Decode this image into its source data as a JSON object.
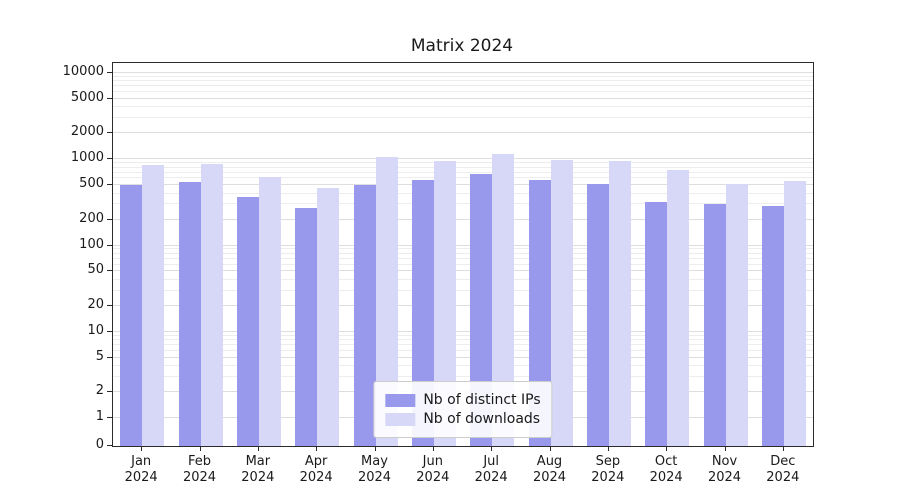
{
  "title": "Matrix 2024",
  "legend": {
    "items": [
      {
        "label": "Nb of distinct IPs",
        "color": "#9898ed"
      },
      {
        "label": "Nb of downloads",
        "color": "#d7d7f8"
      }
    ]
  },
  "axes": {
    "months": [
      "Jan",
      "Feb",
      "Mar",
      "Apr",
      "May",
      "Jun",
      "Jul",
      "Aug",
      "Sep",
      "Oct",
      "Nov",
      "Dec"
    ],
    "year": "2024",
    "y_tick_labels": [
      "0",
      "1",
      "2",
      "5",
      "10",
      "20",
      "50",
      "100",
      "200",
      "500",
      "1000",
      "2000",
      "5000",
      "10000"
    ]
  },
  "chart_data": {
    "type": "bar",
    "scale": "symlog",
    "title": "Matrix 2024",
    "xlabel": "",
    "ylabel": "",
    "categories": [
      "Jan 2024",
      "Feb 2024",
      "Mar 2024",
      "Apr 2024",
      "May 2024",
      "Jun 2024",
      "Jul 2024",
      "Aug 2024",
      "Sep 2024",
      "Oct 2024",
      "Nov 2024",
      "Dec 2024"
    ],
    "series": [
      {
        "name": "Nb of distinct IPs",
        "color": "#9898ed",
        "values": [
          500,
          540,
          370,
          270,
          500,
          570,
          680,
          570,
          520,
          320,
          300,
          290
        ]
      },
      {
        "name": "Nb of downloads",
        "color": "#d7d7f8",
        "values": [
          850,
          890,
          630,
          460,
          1050,
          950,
          1150,
          980,
          960,
          760,
          520,
          560
        ]
      }
    ],
    "y_ticks": [
      0,
      1,
      2,
      5,
      10,
      20,
      50,
      100,
      200,
      500,
      1000,
      2000,
      5000,
      10000
    ],
    "ylim": [
      0,
      13000
    ],
    "grid": true,
    "legend_position": "lower center"
  }
}
